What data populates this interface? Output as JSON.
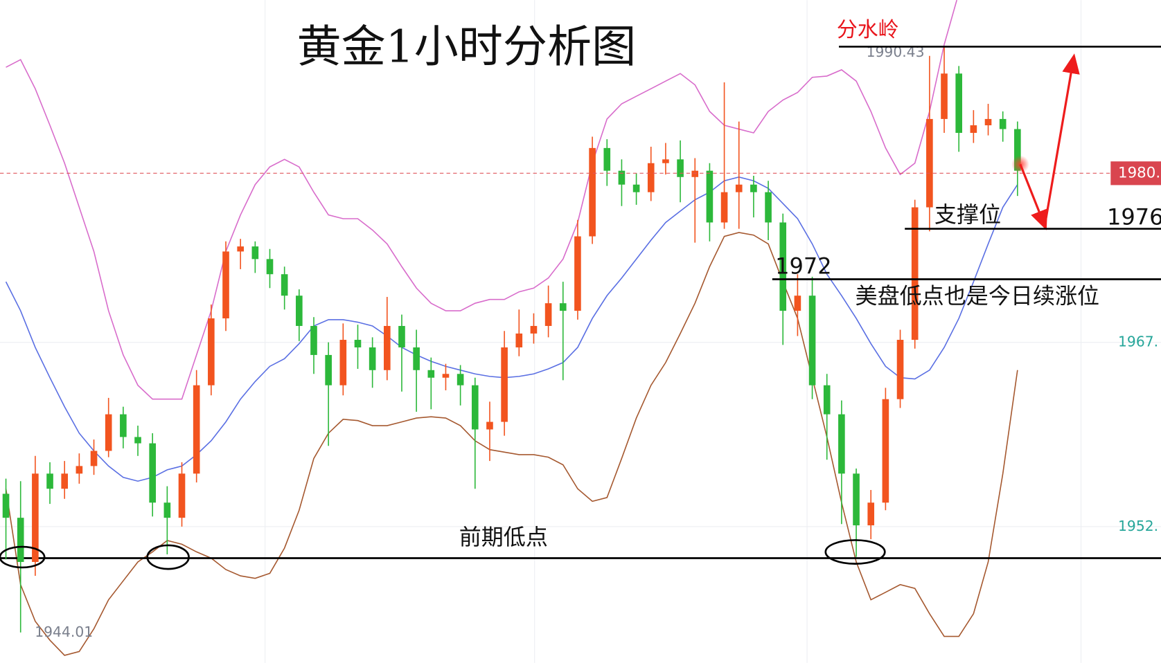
{
  "chart_data": {
    "type": "candlestick",
    "title": "黄金1小时分析图",
    "ylim": [
      1941.6,
      1994.12
    ],
    "yticks": [
      {
        "value": 1967,
        "label": "1967."
      },
      {
        "value": 1952.4,
        "label": "1952."
      }
    ],
    "grid": true,
    "up_color": "#f2541f",
    "down_color": "#2cb83a",
    "candles": {
      "open": [
        1955.0,
        1953.1,
        1949.6,
        1956.6,
        1955.4,
        1956.6,
        1957.2,
        1958.4,
        1961.3,
        1959.5,
        1959.0,
        1954.3,
        1953.1,
        1956.6,
        1963.6,
        1968.9,
        1974.2,
        1974.6,
        1973.6,
        1972.4,
        1970.7,
        1968.3,
        1966.0,
        1963.6,
        1967.2,
        1966.6,
        1964.8,
        1968.3,
        1966.6,
        1964.8,
        1964.2,
        1964.5,
        1963.6,
        1960.1,
        1960.7,
        1966.6,
        1967.7,
        1968.3,
        1970.1,
        1969.5,
        1975.4,
        1982.4,
        1980.6,
        1979.5,
        1978.9,
        1981.2,
        1981.5,
        1980.1,
        1980.6,
        1976.5,
        1978.9,
        1979.5,
        1978.9,
        1976.5,
        1969.5,
        1970.7,
        1963.6,
        1961.3,
        1956.6,
        1952.5,
        1954.3,
        1962.5,
        1967.2,
        1977.7,
        1984.7,
        1988.3,
        1983.6,
        1984.2,
        1984.7,
        1983.9
      ],
      "high": [
        1956.2,
        1956.0,
        1958.0,
        1957.5,
        1957.6,
        1958.2,
        1959.3,
        1962.6,
        1961.9,
        1960.4,
        1959.8,
        1955.6,
        1957.5,
        1964.8,
        1970.0,
        1975.0,
        1975.2,
        1975.0,
        1974.4,
        1973.0,
        1971.2,
        1969.0,
        1967.0,
        1968.5,
        1968.4,
        1967.4,
        1970.6,
        1969.2,
        1968.0,
        1965.8,
        1965.3,
        1965.2,
        1964.2,
        1962.3,
        1967.9,
        1969.6,
        1969.3,
        1971.5,
        1971.8,
        1976.7,
        1983.3,
        1983.1,
        1981.5,
        1980.4,
        1982.5,
        1982.8,
        1983.0,
        1981.6,
        1981.2,
        1987.6,
        1984.5,
        1980.2,
        1979.8,
        1977.2,
        1972.4,
        1972.2,
        1964.5,
        1962.4,
        1957.0,
        1955.3,
        1963.4,
        1968.0,
        1978.3,
        1989.7,
        1990.43,
        1988.9,
        1985.4,
        1985.9,
        1985.3,
        1984.5
      ],
      "low": [
        1949.8,
        1944.01,
        1948.5,
        1954.2,
        1954.6,
        1955.8,
        1956.5,
        1957.9,
        1958.6,
        1958.0,
        1953.2,
        1950.2,
        1952.4,
        1955.9,
        1962.8,
        1967.9,
        1972.8,
        1972.5,
        1971.3,
        1969.6,
        1967.1,
        1964.5,
        1958.8,
        1962.8,
        1964.9,
        1963.4,
        1964.0,
        1963.1,
        1961.5,
        1961.7,
        1963.2,
        1962.0,
        1955.4,
        1957.6,
        1959.6,
        1965.9,
        1966.9,
        1967.4,
        1964.0,
        1968.8,
        1974.8,
        1979.4,
        1977.8,
        1977.9,
        1978.2,
        1980.3,
        1978.1,
        1974.9,
        1975.0,
        1976.0,
        1976.0,
        1976.9,
        1975.1,
        1966.8,
        1967.5,
        1962.5,
        1957.7,
        1952.6,
        1950.0,
        1951.4,
        1953.7,
        1961.8,
        1966.5,
        1975.8,
        1983.6,
        1982.1,
        1982.8,
        1983.4,
        1982.9,
        1978.6
      ],
      "close": [
        1953.1,
        1949.6,
        1956.6,
        1955.4,
        1956.6,
        1957.2,
        1958.4,
        1961.3,
        1959.5,
        1959.0,
        1954.3,
        1953.1,
        1956.6,
        1963.6,
        1968.9,
        1974.2,
        1974.6,
        1973.6,
        1972.4,
        1970.7,
        1968.3,
        1966.0,
        1963.6,
        1967.2,
        1966.6,
        1964.8,
        1968.3,
        1966.6,
        1964.8,
        1964.2,
        1964.5,
        1963.6,
        1960.1,
        1960.7,
        1966.6,
        1967.7,
        1968.3,
        1970.1,
        1969.5,
        1975.4,
        1982.4,
        1980.6,
        1979.5,
        1978.9,
        1981.2,
        1981.5,
        1980.1,
        1980.6,
        1976.5,
        1978.9,
        1979.5,
        1978.9,
        1976.5,
        1969.5,
        1970.7,
        1963.6,
        1961.3,
        1956.6,
        1952.5,
        1954.3,
        1962.5,
        1967.2,
        1977.7,
        1984.7,
        1988.3,
        1983.6,
        1984.2,
        1984.7,
        1983.9,
        1980.6
      ]
    },
    "series": [
      {
        "color": "#d86ccb",
        "values": [
          1988.8,
          1989.4,
          1987.1,
          1984.2,
          1981.2,
          1977.7,
          1974.2,
          1969.5,
          1966.0,
          1963.6,
          1962.5,
          1962.5,
          1962.5,
          1966.0,
          1969.5,
          1974.2,
          1977.1,
          1979.5,
          1980.9,
          1981.5,
          1980.9,
          1978.9,
          1977.1,
          1976.8,
          1976.8,
          1975.9,
          1974.8,
          1973.0,
          1971.3,
          1970.1,
          1969.5,
          1969.5,
          1970.1,
          1970.4,
          1970.4,
          1971.0,
          1971.3,
          1972.1,
          1973.6,
          1976.5,
          1981.2,
          1984.7,
          1985.9,
          1986.5,
          1987.1,
          1987.7,
          1988.3,
          1987.4,
          1985.3,
          1984.2,
          1983.9,
          1983.6,
          1985.3,
          1986.2,
          1986.8,
          1988.0,
          1988.1,
          1988.6,
          1987.7,
          1985.3,
          1982.4,
          1980.3,
          1981.2,
          1985.3,
          1990.6,
          1994.7,
          null,
          null,
          null,
          null
        ]
      },
      {
        "color": "#5a6fe3",
        "values": [
          1971.8,
          1969.5,
          1966.6,
          1964.2,
          1961.9,
          1959.8,
          1958.4,
          1957.2,
          1956.3,
          1956.0,
          1956.3,
          1956.9,
          1957.2,
          1958.1,
          1959.2,
          1960.7,
          1962.5,
          1963.9,
          1965.1,
          1965.7,
          1966.9,
          1968.3,
          1968.8,
          1968.8,
          1968.6,
          1968.3,
          1967.5,
          1966.6,
          1966.0,
          1965.5,
          1965.1,
          1964.8,
          1964.5,
          1964.3,
          1964.2,
          1964.3,
          1964.5,
          1964.9,
          1965.4,
          1966.6,
          1968.9,
          1970.7,
          1972.1,
          1973.6,
          1975.1,
          1976.5,
          1977.4,
          1978.3,
          1978.9,
          1979.8,
          1980.1,
          1979.8,
          1979.2,
          1978.0,
          1976.8,
          1974.8,
          1972.4,
          1970.7,
          1968.9,
          1966.9,
          1965.1,
          1964.2,
          1964.1,
          1964.8,
          1966.6,
          1968.9,
          1971.8,
          1974.8,
          1977.7,
          1979.5
        ]
      },
      {
        "color": "#a5582f",
        "values": [
          1955.4,
          1947.8,
          1944.9,
          1943.4,
          1942.2,
          1942.5,
          1944.3,
          1946.6,
          1948.1,
          1949.6,
          1950.4,
          1951.3,
          1951.0,
          1950.4,
          1949.9,
          1949.0,
          1948.5,
          1948.3,
          1948.7,
          1950.7,
          1953.7,
          1957.8,
          1959.8,
          1960.9,
          1960.8,
          1960.4,
          1960.4,
          1960.7,
          1961.0,
          1961.1,
          1961.0,
          1960.4,
          1959.2,
          1958.5,
          1958.3,
          1958.1,
          1958.1,
          1957.9,
          1957.3,
          1955.4,
          1954.4,
          1954.7,
          1957.8,
          1961.0,
          1963.6,
          1965.4,
          1967.7,
          1970.1,
          1973.0,
          1975.4,
          1975.7,
          1975.5,
          1974.8,
          1971.8,
          1968.9,
          1964.2,
          1959.5,
          1954.3,
          1949.6,
          1946.6,
          1947.2,
          1947.8,
          1947.5,
          1945.5,
          1943.7,
          1943.7,
          1945.5,
          1949.6,
          1956.6,
          1964.8
        ]
      }
    ],
    "last_price": {
      "value": 1980.4,
      "label": "1980."
    },
    "support_levels": [
      1976,
      1972
    ],
    "prior_low_level": 1949.9,
    "annotations": [
      "分水岭",
      "支撑位",
      "美盘低点也是今日续涨位",
      "前期低点"
    ]
  }
}
